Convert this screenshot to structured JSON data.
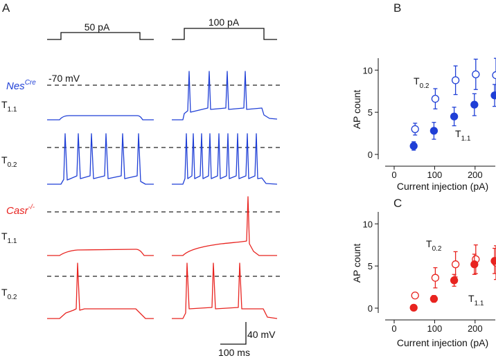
{
  "panels": {
    "a": "A",
    "b": "B",
    "c": "C"
  },
  "stimulus": {
    "left_label": "50 pA",
    "right_label": "100 pA"
  },
  "genotypes": {
    "nes": {
      "name": "Nes",
      "sup": "Cre",
      "color": "#1f3fd6"
    },
    "casr": {
      "name": "Casr",
      "sup": "-/-",
      "color": "#e8231f"
    }
  },
  "resting_label": "-70 mV",
  "row_labels": [
    {
      "main": "T",
      "sub": "1.1"
    },
    {
      "main": "T",
      "sub": "0.2"
    },
    {
      "main": "T",
      "sub": "1.1"
    },
    {
      "main": "T",
      "sub": "0.2"
    }
  ],
  "scale_bar": {
    "voltage": "40 mV",
    "time": "100 ms"
  },
  "chart_data": [
    {
      "type": "scatter",
      "panel": "B",
      "color": "#1f3fd6",
      "xlabel": "Current injection (pA)",
      "ylabel": "AP count",
      "xlim": [
        0,
        250
      ],
      "ylim": [
        0,
        11.5
      ],
      "xticks": [
        0,
        100,
        200
      ],
      "yticks": [
        0,
        5,
        10
      ],
      "series": [
        {
          "name": "T0.2",
          "label_main": "T",
          "label_sub": "0.2",
          "filled": false,
          "x": [
            50,
            100,
            150,
            200,
            250
          ],
          "y": [
            3.0,
            6.6,
            8.8,
            9.5,
            9.4
          ],
          "err": [
            0.7,
            1.2,
            1.7,
            1.8,
            2.0
          ]
        },
        {
          "name": "T1.1",
          "label_main": "T",
          "label_sub": "1.1",
          "filled": true,
          "x": [
            50,
            100,
            150,
            200,
            250
          ],
          "y": [
            1.0,
            2.8,
            4.5,
            5.9,
            7.0
          ],
          "err": [
            0.5,
            1.0,
            1.1,
            1.3,
            1.3
          ]
        }
      ]
    },
    {
      "type": "scatter",
      "panel": "C",
      "color": "#e8231f",
      "xlabel": "Current injection (pA)",
      "ylabel": "AP count",
      "xlim": [
        0,
        250
      ],
      "ylim": [
        0,
        11.5
      ],
      "xticks": [
        0,
        100,
        200
      ],
      "yticks": [
        0,
        5,
        10
      ],
      "series": [
        {
          "name": "T0.2",
          "label_main": "T",
          "label_sub": "0.2",
          "filled": false,
          "x": [
            50,
            100,
            150,
            200,
            250
          ],
          "y": [
            1.5,
            3.6,
            5.2,
            5.8,
            5.4
          ],
          "err": [
            0.1,
            1.2,
            1.5,
            1.7,
            2.0
          ]
        },
        {
          "name": "T1.1",
          "label_main": "T",
          "label_sub": "1.1",
          "filled": true,
          "x": [
            50,
            100,
            150,
            200,
            250
          ],
          "y": [
            0.05,
            1.1,
            3.3,
            5.2,
            5.6
          ],
          "err": [
            0.1,
            0.4,
            0.7,
            1.2,
            1.5
          ]
        }
      ]
    }
  ]
}
